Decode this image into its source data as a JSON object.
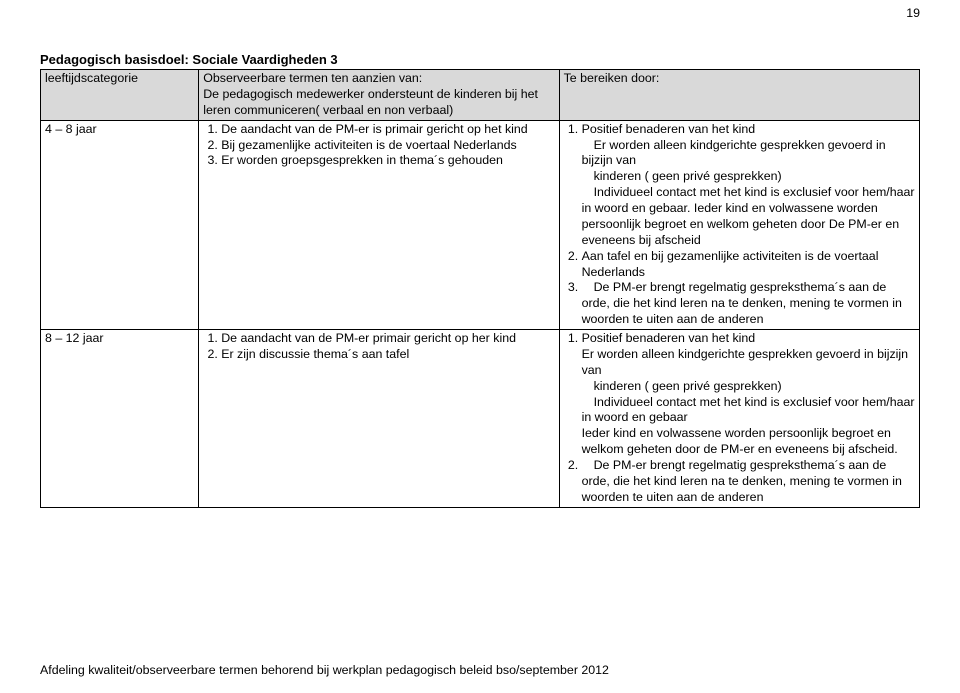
{
  "page_number": "19",
  "title": "Pedagogisch basisdoel: Sociale Vaardigheden 3",
  "header": {
    "col1": "leeftijdscategorie",
    "col2_line1": "Observeerbare termen ten aanzien van:",
    "col2_line2": "De pedagogisch medewerker ondersteunt de kinderen bij het leren communiceren( verbaal en non verbaal)",
    "col3": "Te bereiken door:"
  },
  "rows": [
    {
      "age": "4 – 8 jaar",
      "observable": {
        "i1": "De aandacht van de PM-er is primair gericht op het kind",
        "i2": "Bij gezamenlijke activiteiten is de voertaal Nederlands",
        "i3": "Er worden groepsgesprekken in thema´s gehouden"
      },
      "reach": {
        "i1_a": "Positief benaderen van het kind",
        "i1_b": "Er worden alleen kindgerichte gesprekken gevoerd in bijzijn van",
        "i1_c": "kinderen ( geen privé gesprekken)",
        "i1_d": "Individueel contact met het kind is exclusief voor hem/haar in woord en gebaar. Ieder kind en volwassene worden persoonlijk begroet en welkom geheten door De PM-er  en eveneens bij afscheid",
        "i2_a": "Aan tafel en bij gezamenlijke activiteiten is de voertaal Nederlands",
        "i3_a": "De PM-er  brengt regelmatig gespreksthema´s aan de orde, die het kind leren na te denken, mening te vormen in woorden te uiten aan de anderen"
      }
    },
    {
      "age": "8 – 12 jaar",
      "observable": {
        "i1": "De aandacht van de  PM-er  primair gericht op her kind",
        "i2": "Er zijn discussie thema´s aan tafel"
      },
      "reach": {
        "i1_a": "Positief benaderen van het kind",
        "i1_b": "Er worden alleen kindgerichte gesprekken gevoerd in bijzijn van",
        "i1_c": "kinderen ( geen privé gesprekken)",
        "i1_d": "Individueel contact met het kind is exclusief voor hem/haar in woord en gebaar",
        "i1_e": "Ieder kind en volwassene worden persoonlijk begroet en welkom geheten door de PM-er  en eveneens bij afscheid.",
        "i2_a": "De PM-er  brengt regelmatig gespreksthema´s aan de orde, die het kind leren na te denken, mening te vormen in woorden te uiten aan de anderen"
      }
    }
  ],
  "footer": "Afdeling kwaliteit/observeerbare termen behorend bij werkplan pedagogisch beleid bso/september 2012"
}
